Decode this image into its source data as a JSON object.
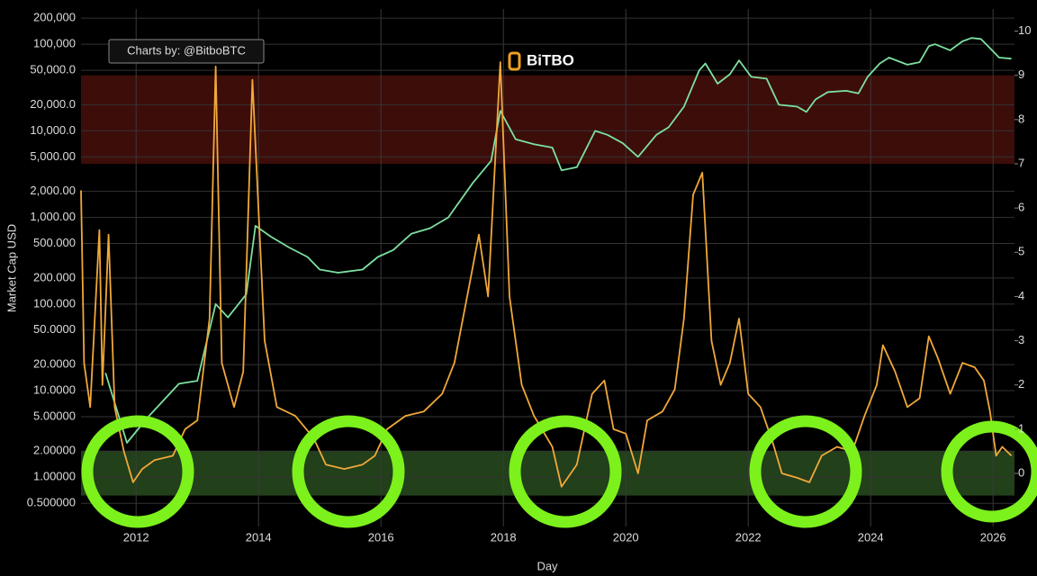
{
  "chart_data": {
    "type": "line",
    "credit": "Charts by: @BitboBTC",
    "logo": "BiTBO",
    "xlabel": "Day",
    "ylabel": "Market Cap USD",
    "log_y": true,
    "grid": true,
    "xlim": [
      2011.1,
      2026.35
    ],
    "xticks": [
      2012,
      2014,
      2016,
      2018,
      2020,
      2022,
      2024,
      2026
    ],
    "ylim": [
      0.27,
      255000
    ],
    "yticks": [
      {
        "value": 200000,
        "label": "200,000"
      },
      {
        "value": 100000,
        "label": "100,000"
      },
      {
        "value": 50000,
        "label": "50,000.0"
      },
      {
        "value": 20000,
        "label": "20,000.0"
      },
      {
        "value": 10000,
        "label": "10,000.0"
      },
      {
        "value": 5000,
        "label": "5,000.00"
      },
      {
        "value": 2000,
        "label": "2,000.00"
      },
      {
        "value": 1000,
        "label": "1,000.00"
      },
      {
        "value": 500,
        "label": "500.000"
      },
      {
        "value": 200,
        "label": "200.000"
      },
      {
        "value": 100,
        "label": "100.000"
      },
      {
        "value": 50,
        "label": "50.0000"
      },
      {
        "value": 20,
        "label": "20.0000"
      },
      {
        "value": 10,
        "label": "10.0000"
      },
      {
        "value": 5,
        "label": "5.00000"
      },
      {
        "value": 2,
        "label": "2.00000"
      },
      {
        "value": 1,
        "label": "1.00000"
      },
      {
        "value": 0.5,
        "label": "0.500000"
      }
    ],
    "y2lim": [
      -1.2,
      10.5
    ],
    "y2ticks": [
      0,
      1,
      2,
      3,
      4,
      5,
      6,
      7,
      8,
      9,
      10
    ],
    "bands": [
      {
        "from": 7,
        "to": 9,
        "color": "#3d0d09",
        "axis": "y2"
      },
      {
        "from": -0.5,
        "to": 0.5,
        "color": "#22401a",
        "axis": "y2"
      }
    ],
    "series": [
      {
        "color": "#7de0a0",
        "x": [
          2011.5,
          2011.85,
          2012.2,
          2012.7,
          2013.0,
          2013.3,
          2013.5,
          2013.8,
          2013.95,
          2014.2,
          2014.5,
          2014.8,
          2015.0,
          2015.3,
          2015.7,
          2015.95,
          2016.2,
          2016.5,
          2016.8,
          2017.1,
          2017.5,
          2017.8,
          2017.95,
          2018.2,
          2018.5,
          2018.8,
          2018.95,
          2019.2,
          2019.5,
          2019.7,
          2019.95,
          2020.2,
          2020.5,
          2020.7,
          2020.95,
          2021.2,
          2021.3,
          2021.5,
          2021.7,
          2021.85,
          2022.05,
          2022.3,
          2022.5,
          2022.8,
          2022.95,
          2023.1,
          2023.3,
          2023.6,
          2023.8,
          2023.95,
          2024.15,
          2024.3,
          2024.6,
          2024.8,
          2024.95,
          2025.05,
          2025.3,
          2025.5,
          2025.65,
          2025.8,
          2025.95,
          2026.1,
          2026.3
        ],
        "values": [
          16,
          2.5,
          5,
          12,
          13,
          100,
          70,
          130,
          800,
          600,
          450,
          350,
          250,
          230,
          250,
          350,
          420,
          650,
          750,
          1000,
          2500,
          4500,
          17000,
          8000,
          7000,
          6400,
          3500,
          3800,
          10000,
          9000,
          7200,
          5000,
          9000,
          11000,
          19000,
          50000,
          60000,
          35000,
          45000,
          65000,
          42000,
          40000,
          20000,
          19000,
          16500,
          23000,
          28000,
          29000,
          27000,
          42000,
          60000,
          70000,
          58000,
          62000,
          95000,
          100000,
          85000,
          108000,
          118000,
          115000,
          90000,
          70000,
          68000
        ]
      },
      {
        "color": "#f0a83a",
        "axis": "y2",
        "x": [
          2011.1,
          2011.15,
          2011.25,
          2011.4,
          2011.45,
          2011.55,
          2011.65,
          2011.8,
          2011.95,
          2012.1,
          2012.3,
          2012.6,
          2012.8,
          2013.0,
          2013.2,
          2013.3,
          2013.4,
          2013.6,
          2013.75,
          2013.9,
          2014.1,
          2014.3,
          2014.6,
          2014.9,
          2015.1,
          2015.4,
          2015.7,
          2015.9,
          2016.1,
          2016.4,
          2016.7,
          2017.0,
          2017.2,
          2017.45,
          2017.6,
          2017.75,
          2017.95,
          2018.1,
          2018.3,
          2018.5,
          2018.8,
          2018.95,
          2019.2,
          2019.45,
          2019.65,
          2019.8,
          2020.0,
          2020.2,
          2020.35,
          2020.6,
          2020.8,
          2020.95,
          2021.1,
          2021.25,
          2021.4,
          2021.55,
          2021.7,
          2021.85,
          2022.0,
          2022.2,
          2022.4,
          2022.55,
          2022.8,
          2023.0,
          2023.2,
          2023.45,
          2023.7,
          2023.9,
          2024.1,
          2024.2,
          2024.4,
          2024.6,
          2024.8,
          2024.95,
          2025.1,
          2025.3,
          2025.5,
          2025.7,
          2025.85,
          2025.95,
          2026.05,
          2026.15,
          2026.3
        ],
        "values": [
          6.4,
          2.5,
          1.5,
          5.5,
          2.0,
          5.4,
          1.5,
          0.5,
          -0.2,
          0.1,
          0.3,
          0.4,
          1.0,
          1.2,
          3.5,
          9.2,
          2.5,
          1.5,
          2.3,
          8.9,
          3.0,
          1.5,
          1.3,
          0.8,
          0.2,
          0.1,
          0.2,
          0.4,
          1.0,
          1.3,
          1.4,
          1.8,
          2.5,
          4.3,
          5.4,
          4.0,
          9.3,
          4.0,
          2.0,
          1.3,
          0.6,
          -0.3,
          0.2,
          1.8,
          2.1,
          1.0,
          0.9,
          0.0,
          1.2,
          1.4,
          1.9,
          3.5,
          6.3,
          6.8,
          3.0,
          2.0,
          2.5,
          3.5,
          1.8,
          1.5,
          0.7,
          0.0,
          -0.1,
          -0.2,
          0.4,
          0.6,
          0.5,
          1.3,
          2.0,
          2.9,
          2.3,
          1.5,
          1.7,
          3.1,
          2.6,
          1.8,
          2.5,
          2.4,
          2.1,
          1.4,
          0.4,
          0.6,
          0.4
        ]
      }
    ]
  }
}
